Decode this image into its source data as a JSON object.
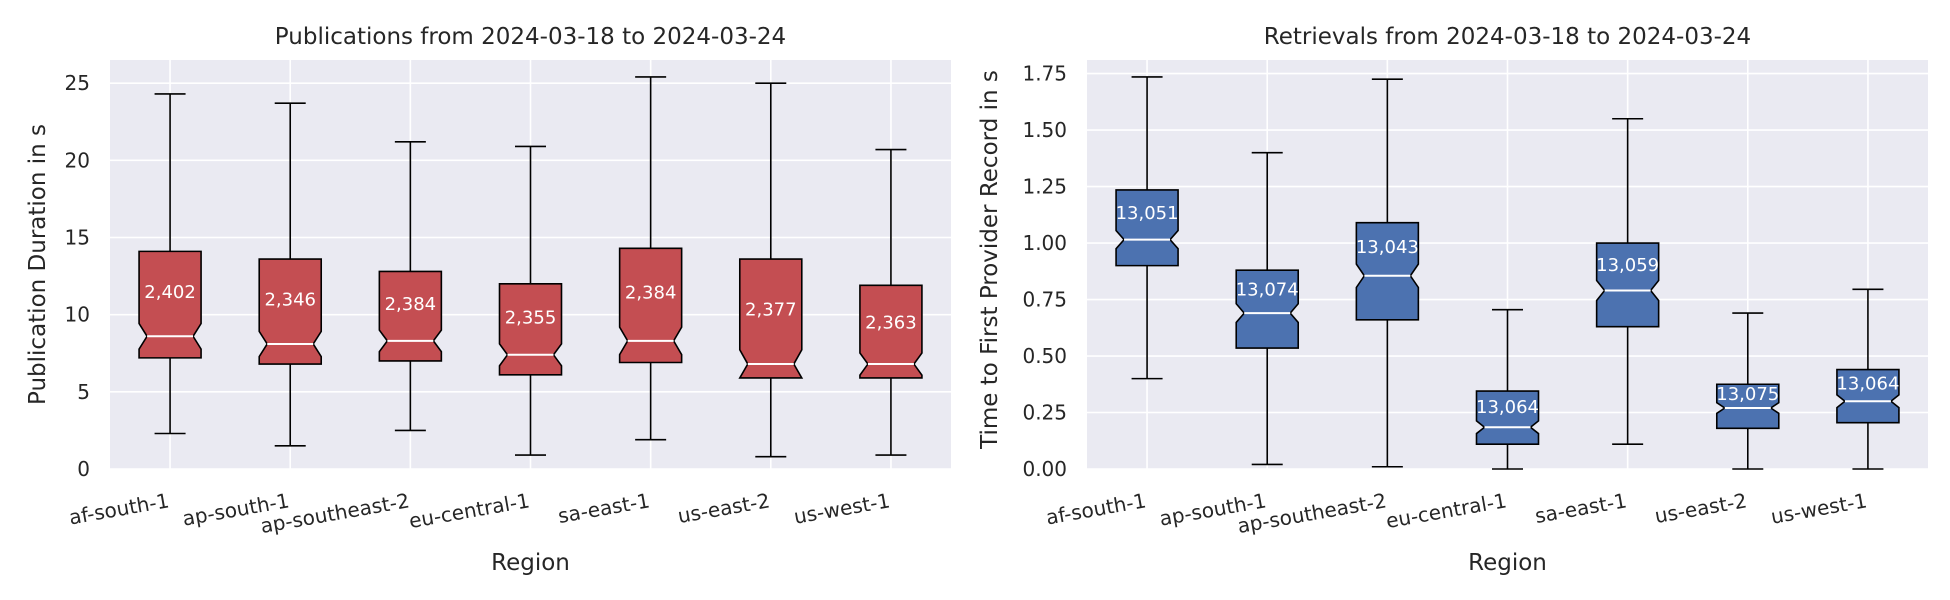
{
  "chart_data": [
    {
      "type": "boxplot",
      "title": "Publications from 2024-03-18 to 2024-03-24",
      "xlabel": "Region",
      "ylabel": "Publication Duration in s",
      "color": "#C44E52",
      "notched": true,
      "ylim": [
        0,
        26.5
      ],
      "yticks": [
        "0",
        "5",
        "10",
        "15",
        "20",
        "25"
      ],
      "grid": true,
      "categories": [
        "af-south-1",
        "ap-south-1",
        "ap-southeast-2",
        "eu-central-1",
        "sa-east-1",
        "us-east-2",
        "us-west-1"
      ],
      "boxes": [
        {
          "whislo": 2.3,
          "q1": 7.2,
          "med": 8.6,
          "q3": 14.1,
          "whishi": 24.3,
          "count": "2,402"
        },
        {
          "whislo": 1.5,
          "q1": 6.8,
          "med": 8.1,
          "q3": 13.6,
          "whishi": 23.7,
          "count": "2,346"
        },
        {
          "whislo": 2.5,
          "q1": 7.0,
          "med": 8.3,
          "q3": 12.8,
          "whishi": 21.2,
          "count": "2,384"
        },
        {
          "whislo": 0.9,
          "q1": 6.1,
          "med": 7.4,
          "q3": 12.0,
          "whishi": 20.9,
          "count": "2,355"
        },
        {
          "whislo": 1.9,
          "q1": 6.9,
          "med": 8.3,
          "q3": 14.3,
          "whishi": 25.4,
          "count": "2,384"
        },
        {
          "whislo": 0.8,
          "q1": 5.9,
          "med": 6.8,
          "q3": 13.6,
          "whishi": 25.0,
          "count": "2,377"
        },
        {
          "whislo": 0.9,
          "q1": 5.9,
          "med": 6.8,
          "q3": 11.9,
          "whishi": 20.7,
          "count": "2,363"
        }
      ]
    },
    {
      "type": "boxplot",
      "title": "Retrievals from 2024-03-18 to 2024-03-24",
      "xlabel": "Region",
      "ylabel": "Time to First Provider Record in s",
      "color": "#4C72B0",
      "notched": true,
      "ylim": [
        0,
        1.81
      ],
      "yticks": [
        "0.00",
        "0.25",
        "0.50",
        "0.75",
        "1.00",
        "1.25",
        "1.50",
        "1.75"
      ],
      "grid": true,
      "categories": [
        "af-south-1",
        "ap-south-1",
        "ap-southeast-2",
        "eu-central-1",
        "sa-east-1",
        "us-east-2",
        "us-west-1"
      ],
      "boxes": [
        {
          "whislo": 0.4,
          "q1": 0.9,
          "med": 1.015,
          "q3": 1.235,
          "whishi": 1.735,
          "count": "13,051"
        },
        {
          "whislo": 0.02,
          "q1": 0.535,
          "med": 0.69,
          "q3": 0.88,
          "whishi": 1.4,
          "count": "13,074"
        },
        {
          "whislo": 0.01,
          "q1": 0.66,
          "med": 0.855,
          "q3": 1.09,
          "whishi": 1.725,
          "count": "13,043"
        },
        {
          "whislo": 0.0,
          "q1": 0.11,
          "med": 0.185,
          "q3": 0.345,
          "whishi": 0.705,
          "count": "13,064"
        },
        {
          "whislo": 0.11,
          "q1": 0.63,
          "med": 0.79,
          "q3": 1.0,
          "whishi": 1.55,
          "count": "13,059"
        },
        {
          "whislo": 0.0,
          "q1": 0.18,
          "med": 0.27,
          "q3": 0.375,
          "whishi": 0.69,
          "count": "13,075"
        },
        {
          "whislo": 0.0,
          "q1": 0.205,
          "med": 0.3,
          "q3": 0.44,
          "whishi": 0.795,
          "count": "13,064"
        }
      ]
    }
  ]
}
